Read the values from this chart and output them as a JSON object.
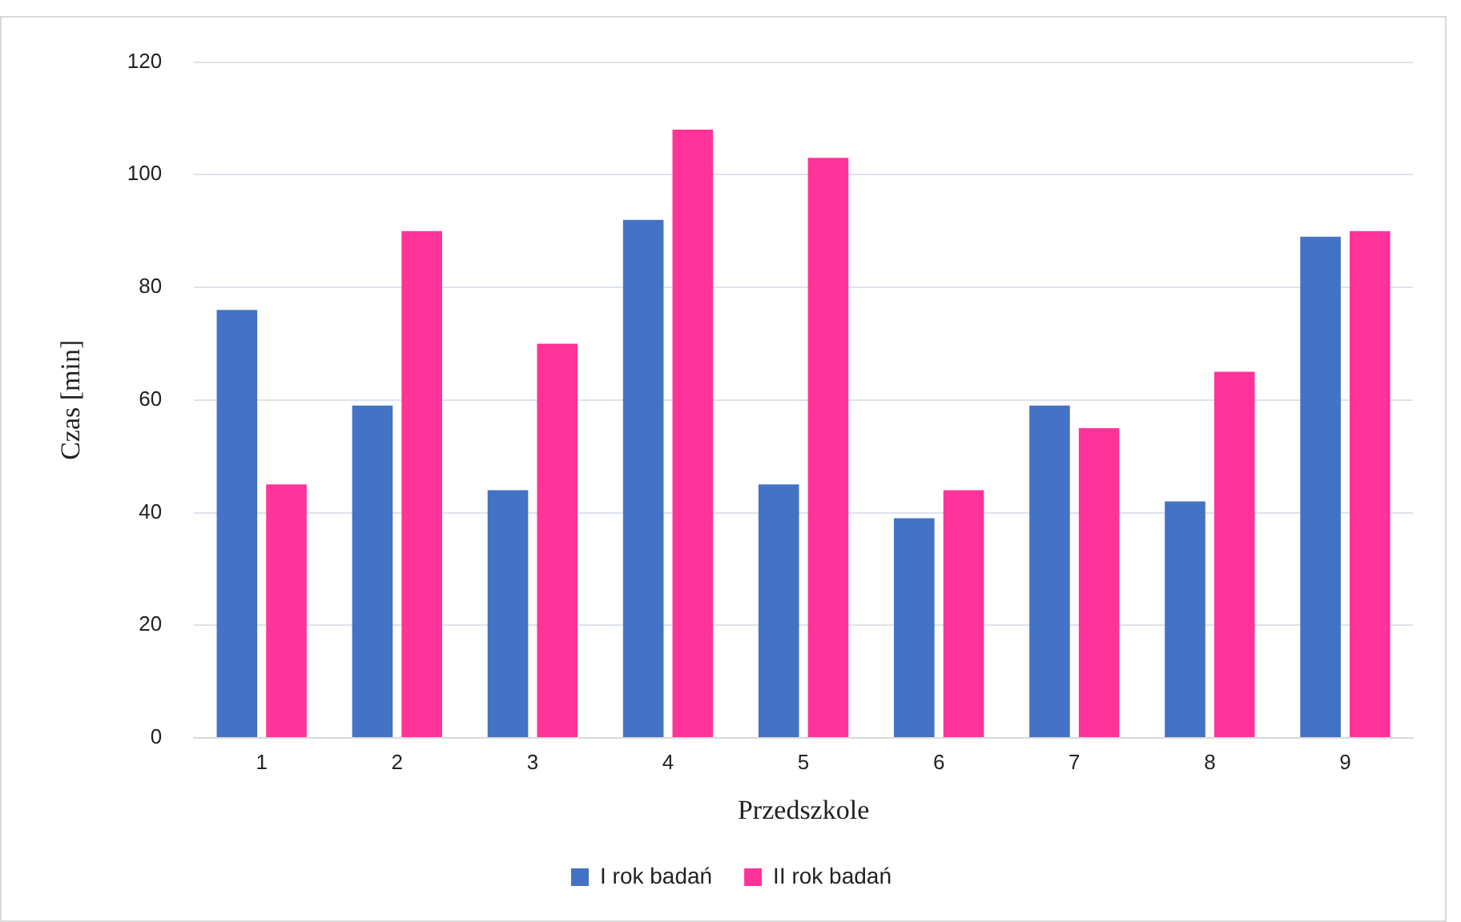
{
  "chart_data": {
    "type": "bar",
    "xlabel": "Przedszkole",
    "ylabel": "Czas [min]",
    "categories": [
      "1",
      "2",
      "3",
      "4",
      "5",
      "6",
      "7",
      "8",
      "9"
    ],
    "series": [
      {
        "name": "I rok badań",
        "color": "#4472c4",
        "values": [
          76,
          59,
          44,
          92,
          45,
          39,
          59,
          42,
          89
        ]
      },
      {
        "name": "II rok badań",
        "color": "#ff3399",
        "values": [
          45,
          90,
          70,
          108,
          103,
          44,
          55,
          65,
          90
        ]
      }
    ],
    "ylim": [
      0,
      120
    ],
    "yticks": [
      0,
      20,
      40,
      60,
      80,
      100,
      120
    ],
    "grid": "y",
    "legend": "bottom"
  }
}
